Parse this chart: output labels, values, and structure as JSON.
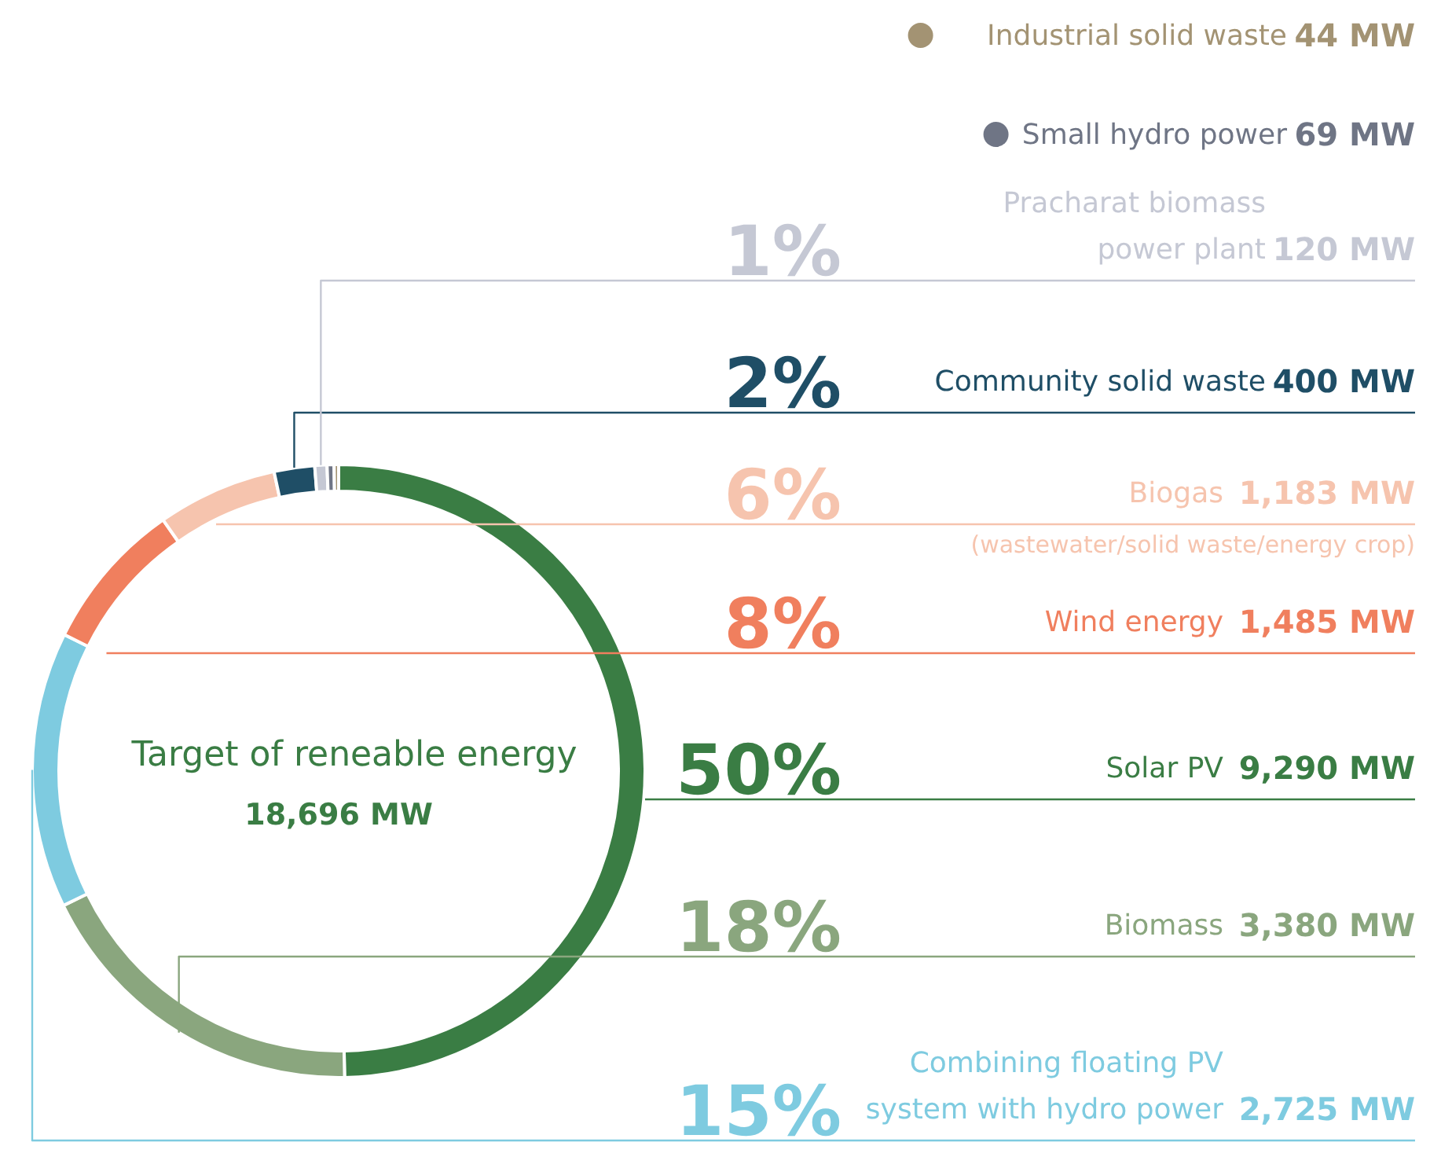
{
  "chart_data": {
    "type": "donut",
    "title": "Target of reneable energy",
    "subtitle": "18,696 MW",
    "categories": [
      "Solar PV",
      "Biomass",
      "Combining floating PV\nsystem with hydro power",
      "Wind energy",
      "Biogas",
      "Community solid waste",
      "Pracharat biomass\npower plant",
      "Small hydro power",
      "Industrial solid waste"
    ],
    "values": [
      9290,
      3380,
      2725,
      1485,
      1183,
      400,
      120,
      69,
      44
    ],
    "colors": [
      "#3a7d44",
      "#8aa67e",
      "#7ecbe0",
      "#f07f5e",
      "#f6c4ae",
      "#1f4e66",
      "#c5c8d4",
      "#6f7585",
      "#a39373"
    ],
    "legend": "top right",
    "value_labels": [
      "9,290 MW",
      "3,380 MW",
      "2,725 MW",
      "1,485 MW",
      "1,183 MW",
      "400 MW",
      "120 MW",
      "69 MW",
      "44 MW"
    ],
    "annotations": [
      {
        "text": "50%",
        "x": "Solar PV"
      },
      {
        "text": "18%",
        "x": "Biomass"
      },
      {
        "text": "15%",
        "x": "Combining floating PV\nsystem with hydro power"
      },
      {
        "text": "8%",
        "x": "Wind energy"
      },
      {
        "text": "6%",
        "x": "Biogas"
      },
      {
        "text": "(wastewater/solid waste/energy crop)",
        "x": "Biogas"
      },
      {
        "text": "2%",
        "x": "Community solid waste"
      },
      {
        "text": "1%",
        "x": "Pracharat biomass\npower plant"
      }
    ]
  }
}
